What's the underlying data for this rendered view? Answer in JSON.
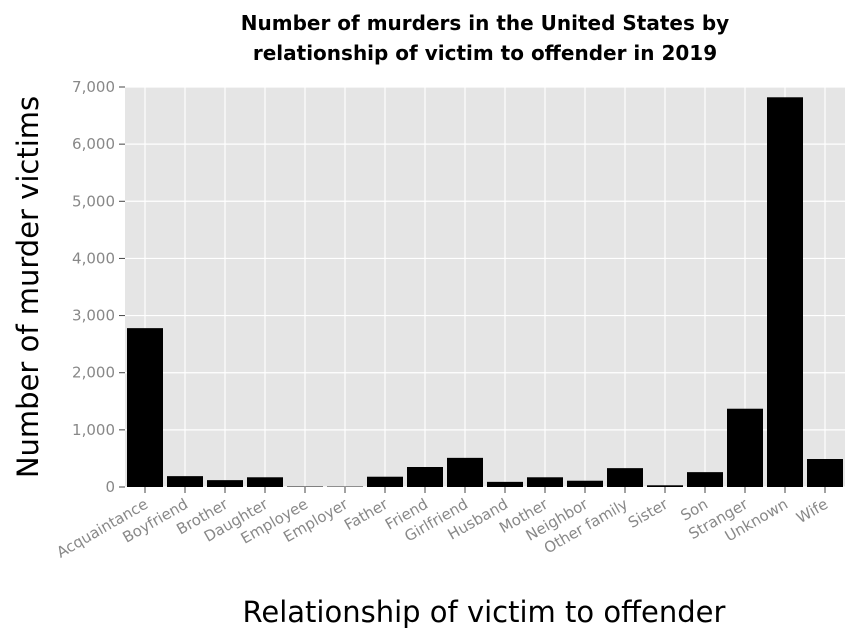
{
  "chart_data": {
    "type": "bar",
    "title_lines": [
      "Number of murders in the United States by",
      "relationship of victim to offender in 2019"
    ],
    "xlabel": "Relationship of victim to offender",
    "ylabel": "Number of murder victims",
    "categories": [
      "Acquaintance",
      "Boyfriend",
      "Brother",
      "Daughter",
      "Employee",
      "Employer",
      "Father",
      "Friend",
      "Girlfriend",
      "Husband",
      "Mother",
      "Neighbor",
      "Other family",
      "Sister",
      "Son",
      "Stranger",
      "Unknown",
      "Wife"
    ],
    "values": [
      2780,
      190,
      120,
      170,
      8,
      7,
      180,
      350,
      510,
      90,
      170,
      110,
      330,
      30,
      260,
      1370,
      6820,
      490
    ],
    "ylim": [
      0,
      7000
    ],
    "yticks": [
      0,
      1000,
      2000,
      3000,
      4000,
      5000,
      6000,
      7000
    ],
    "ytick_labels": [
      "0",
      "1,000",
      "2,000",
      "3,000",
      "4,000",
      "5,000",
      "6,000",
      "7,000"
    ],
    "grid": true,
    "bar_color": "#000000",
    "background_color": "#e5e5e5"
  }
}
